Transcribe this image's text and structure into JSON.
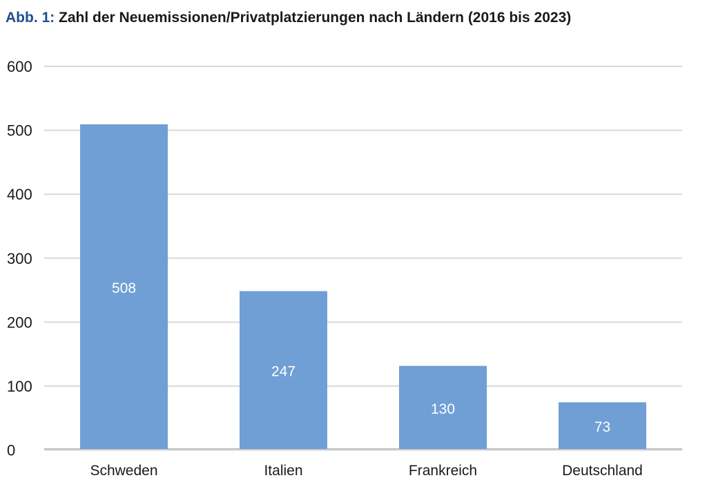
{
  "title_prefix": "Abb. 1:",
  "title_text": "Zahl der Neuemissionen/Privatplatzierungen nach Ländern (2016 bis 2023)",
  "colors": {
    "bar": "#6f9fd5",
    "grid": "#d9d9d9",
    "axis": "#bfbfbf",
    "title_prefix": "#1f4e8c"
  },
  "chart_data": {
    "type": "bar",
    "title": "Zahl der Neuemissionen/Privatplatzierungen nach Ländern (2016 bis 2023)",
    "categories": [
      "Schweden",
      "Italien",
      "Frankreich",
      "Deutschland"
    ],
    "values": [
      508,
      247,
      130,
      73
    ],
    "data_labels": [
      "508",
      "247",
      "130",
      "73"
    ],
    "y_ticks": [
      "600",
      "500",
      "400",
      "300",
      "200",
      "100",
      "0"
    ],
    "xlabel": "",
    "ylabel": "",
    "grid": true,
    "legend": "none"
  }
}
